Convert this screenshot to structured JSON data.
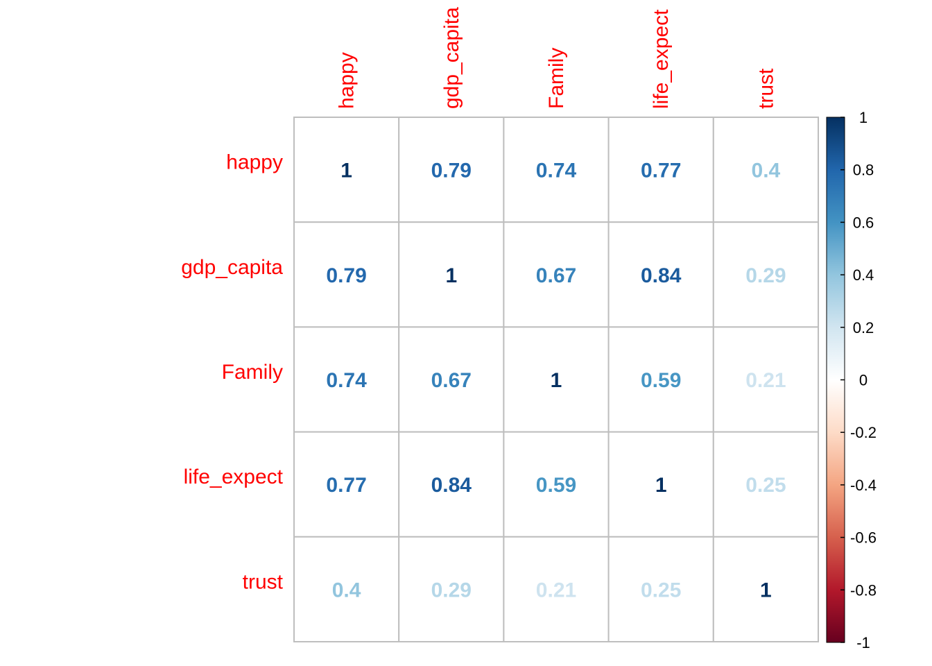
{
  "chart_data": {
    "type": "heatmap",
    "variables": [
      "happy",
      "gdp_capita",
      "Family",
      "life_expect",
      "trust"
    ],
    "matrix": [
      [
        1,
        0.79,
        0.74,
        0.77,
        0.4
      ],
      [
        0.79,
        1,
        0.67,
        0.84,
        0.29
      ],
      [
        0.74,
        0.67,
        1,
        0.59,
        0.21
      ],
      [
        0.77,
        0.84,
        0.59,
        1,
        0.25
      ],
      [
        0.4,
        0.29,
        0.21,
        0.25,
        1
      ]
    ],
    "cell_labels": [
      [
        "1",
        "0.79",
        "0.74",
        "0.77",
        "0.4"
      ],
      [
        "0.79",
        "1",
        "0.67",
        "0.84",
        "0.29"
      ],
      [
        "0.74",
        "0.67",
        "1",
        "0.59",
        "0.21"
      ],
      [
        "0.77",
        "0.84",
        "0.59",
        "1",
        "0.25"
      ],
      [
        "0.4",
        "0.29",
        "0.21",
        "0.25",
        "1"
      ]
    ],
    "color_scale": {
      "range": [
        -1,
        1
      ],
      "tick_values": [
        1,
        0.8,
        0.6,
        0.4,
        0.2,
        0,
        -0.2,
        -0.4,
        -0.6,
        -0.8,
        -1
      ],
      "tick_labels": [
        "1",
        "0.8",
        "0.6",
        "0.4",
        "0.2",
        "0",
        "-0.2",
        "-0.4",
        "-0.6",
        "-0.8",
        "-1"
      ],
      "stops": [
        "#67001F",
        "#B2182B",
        "#D6604D",
        "#F4A582",
        "#FDDBC7",
        "#FFFFFF",
        "#D1E5F0",
        "#92C5DE",
        "#4393C3",
        "#2166AC",
        "#053061"
      ]
    },
    "label_color": "#FF0000",
    "grid_color": "#BEBEBE",
    "legend_position": "right"
  }
}
